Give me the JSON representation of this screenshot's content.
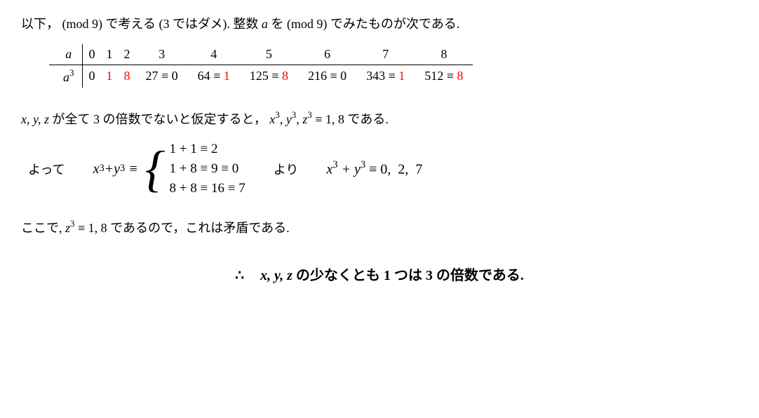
{
  "intro": {
    "prefix": "以下，",
    "mod9_1": "(mod 9)",
    "mid1": " で考える (3 ではダメ).  整数 ",
    "a": "a",
    "mid2": " を ",
    "mod9_2": "(mod 9)",
    "tail": " でみたものが次である."
  },
  "table": {
    "row_head_a": "a",
    "row_head_a3": "a³",
    "a_vals": [
      "0",
      "1",
      "2",
      "3",
      "4",
      "5",
      "6",
      "7",
      "8"
    ],
    "a3_cells": [
      {
        "text": "0",
        "red": false
      },
      {
        "text": "1",
        "red": true
      },
      {
        "text": "8",
        "red": true
      },
      {
        "prefix": "27 ≡ ",
        "val": "0",
        "red": false
      },
      {
        "prefix": "64 ≡ ",
        "val": "1",
        "red": true
      },
      {
        "prefix": "125 ≡ ",
        "val": "8",
        "red": true
      },
      {
        "prefix": "216 ≡ ",
        "val": "0",
        "red": false
      },
      {
        "prefix": "343 ≡ ",
        "val": "1",
        "red": true
      },
      {
        "prefix": "512 ≡ ",
        "val": "8",
        "red": true
      }
    ]
  },
  "para2": {
    "xyz": "x,  y,  z",
    "mid": " が全て 3 の倍数でないと仮定すると，",
    "x3": "x³",
    "y3": "y³",
    "z3": "z³",
    "equiv": " ≡ 1,  8",
    "end": " である."
  },
  "cases": {
    "lead": "よって",
    "lhs": "x³ + y³ ≡ ",
    "lines": [
      "1 + 1 ≡ 2",
      "1 + 8 ≡ 9 ≡ 0",
      "8 + 8 ≡ 16 ≡ 7"
    ],
    "yori": "より",
    "rhs": "x³ + y³ ≡ 0,  2,  7"
  },
  "para3": {
    "here": "ここで, ",
    "z3": "z³",
    "equiv": " ≡ 1,  8",
    "mid": " であるので，これは矛盾である."
  },
  "conclusion": {
    "therefore": "∴",
    "xyz": "x,  y,  z",
    "text": " の少なくとも 1 つは 3 の倍数である."
  },
  "colors": {
    "text": "#000000",
    "highlight": "#ff0000",
    "bg": "#ffffff"
  }
}
